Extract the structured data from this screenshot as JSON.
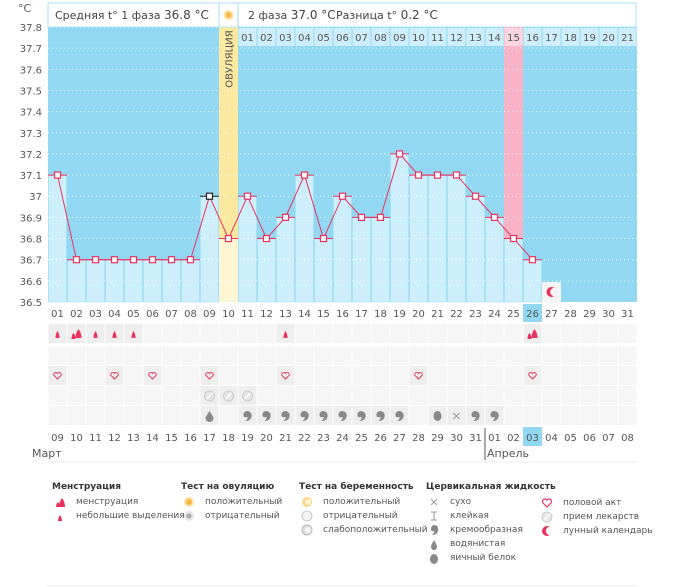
{
  "header": {
    "unit_label": "°C",
    "phase1_label": "Средняя t° 1 фаза",
    "phase1_value": "36.8 °C",
    "phase2_label": "2 фаза",
    "phase2_value": "37.0 °C",
    "diff_label": "Разница t°",
    "diff_value": "0.2 °C",
    "ovulation_label": "ОВУЛЯЦИЯ"
  },
  "colors": {
    "sky": "#93d8f3",
    "bar": "#cdeefb",
    "line": "#e8325e",
    "ovulation": "#fbe9a0",
    "ovulation_light": "#fdf6d2",
    "expected_period": "#f9b3c8",
    "today": "#93d8f3",
    "weekend": "#e8325e",
    "cell": "#f2f2f2"
  },
  "chart_data": {
    "type": "line",
    "title": "",
    "xlabel": "",
    "ylabel": "°C",
    "ylim": [
      36.5,
      37.8
    ],
    "yticks": [
      "36.5",
      "36.6",
      "36.7",
      "36.8",
      "36.9",
      "37",
      "37.1",
      "37.2",
      "37.3",
      "37.4",
      "37.5",
      "37.6",
      "37.7",
      "37.8"
    ],
    "cycle_days": [
      "01",
      "02",
      "03",
      "04",
      "05",
      "06",
      "07",
      "08",
      "09",
      "10",
      "11",
      "12",
      "13",
      "14",
      "15",
      "16",
      "17",
      "18",
      "19",
      "20",
      "21",
      "22",
      "23",
      "24",
      "25",
      "26",
      "27",
      "28",
      "29",
      "30",
      "31"
    ],
    "temperatures": [
      37.1,
      36.7,
      36.7,
      36.7,
      36.7,
      36.7,
      36.7,
      36.7,
      37.0,
      36.8,
      37.0,
      36.8,
      36.9,
      37.1,
      36.8,
      37.0,
      36.9,
      36.9,
      37.2,
      37.1,
      37.1,
      37.1,
      37.0,
      36.9,
      36.8,
      36.7,
      null,
      null,
      null,
      null,
      null
    ],
    "ovulation_day_index": 9,
    "post_ovulation_days": [
      "01",
      "02",
      "03",
      "04",
      "05",
      "06",
      "07",
      "08",
      "09",
      "10",
      "11",
      "12",
      "13",
      "14",
      "15",
      "16",
      "17",
      "18",
      "19",
      "20",
      "21"
    ],
    "expected_period_post_day": "15",
    "today_cycle_day": "26",
    "marked_day_index": 8,
    "calendar_dates": [
      "09",
      "10",
      "11",
      "12",
      "13",
      "14",
      "15",
      "16",
      "17",
      "18",
      "19",
      "20",
      "21",
      "22",
      "23",
      "24",
      "25",
      "26",
      "27",
      "28",
      "29",
      "30",
      "31",
      "01",
      "02",
      "03",
      "04",
      "05",
      "06",
      "07",
      "08"
    ],
    "weekend_date_indices": [
      0,
      1,
      7,
      8,
      14,
      15,
      21,
      22,
      28,
      29
    ],
    "today_date_index": 25,
    "month_start": {
      "label": "Март",
      "index": 0
    },
    "month_change": {
      "label": "Апрель",
      "index": 23
    },
    "moon_day_index": 26
  },
  "events": {
    "menstruation": {
      "spotting": [
        0,
        2,
        3,
        4,
        12
      ],
      "period": [
        1,
        25
      ]
    },
    "sex": [
      0,
      3,
      5,
      8,
      12,
      19,
      25
    ],
    "pills": [
      8,
      9,
      10
    ],
    "mucus": {
      "watery": [
        8
      ],
      "creamy": [
        10,
        11,
        12,
        13,
        14,
        15,
        16,
        17,
        18,
        22,
        23
      ],
      "egg_white": [
        20
      ],
      "dry": [
        21
      ]
    }
  },
  "legend": {
    "menstruation": {
      "title": "Менструация",
      "items": [
        "менструация",
        "небольшие выделения"
      ]
    },
    "ovulation_test": {
      "title": "Тест на овуляцию",
      "items": [
        "положительный",
        "отрицательный"
      ]
    },
    "pregnancy_test": {
      "title": "Тест на беременность",
      "items": [
        "положительный",
        "отрицательный",
        "слабоположительный"
      ]
    },
    "cervical_fluid": {
      "title": "Цервикальная жидкость",
      "items": [
        "сухо",
        "клейкая",
        "кремообразная",
        "водянистая",
        "яичный белок"
      ]
    },
    "other": {
      "items": [
        "половой акт",
        "прием лекарств",
        "лунный календарь"
      ]
    }
  }
}
